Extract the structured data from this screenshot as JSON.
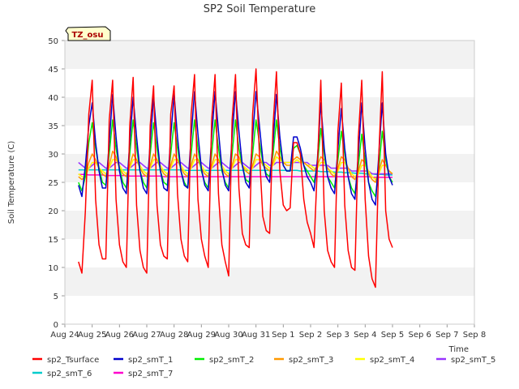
{
  "chart_data": {
    "type": "line",
    "title": "SP2 Soil Temperature",
    "xlabel": "Time",
    "ylabel": "Soil Temperature (C)",
    "ylim": [
      0,
      50
    ],
    "yticks": [
      0,
      5,
      10,
      15,
      20,
      25,
      30,
      35,
      40,
      45,
      50
    ],
    "xlim": [
      0,
      15
    ],
    "xtick_labels": [
      "Aug 24",
      "Aug 25",
      "Aug 26",
      "Aug 27",
      "Aug 28",
      "Aug 29",
      "Aug 30",
      "Aug 31",
      "Sep 1",
      "Sep 2",
      "Sep 3",
      "Sep 4",
      "Sep 5",
      "Sep 6",
      "Sep 7",
      "Sep 8"
    ],
    "grid": "horizontal bands",
    "legend_position": "bottom",
    "annotation": "TZ_osu",
    "sample_step_days": 0.125,
    "series": [
      {
        "name": "sp2_Tsurface",
        "color": "#ff0000",
        "values": [
          11.0,
          9.0,
          20.0,
          37.0,
          43.0,
          22.0,
          14.0,
          11.5,
          11.5,
          36.0,
          43.0,
          22.0,
          14.0,
          11.0,
          10.0,
          35.0,
          43.5,
          21.0,
          13.0,
          10.0,
          9.0,
          35.0,
          42.0,
          21.0,
          14.0,
          12.0,
          11.5,
          37.0,
          42.0,
          23.0,
          15.0,
          12.0,
          11.0,
          37.0,
          44.0,
          22.0,
          15.0,
          12.0,
          10.0,
          36.0,
          44.0,
          23.0,
          14.0,
          11.0,
          8.5,
          36.0,
          44.0,
          24.0,
          16.0,
          14.0,
          13.5,
          37.0,
          45.0,
          30.0,
          19.0,
          16.5,
          16.0,
          35.0,
          44.5,
          27.0,
          21.0,
          20.0,
          20.5,
          32.0,
          32.0,
          30.0,
          22.0,
          18.0,
          16.0,
          13.5,
          28.0,
          43.0,
          20.0,
          13.0,
          11.0,
          10.0,
          34.0,
          42.5,
          21.0,
          13.0,
          10.0,
          9.5,
          33.0,
          43.0,
          22.0,
          12.0,
          8.0,
          6.5,
          30.0,
          44.5,
          20.0,
          15.0,
          13.5
        ]
      },
      {
        "name": "sp2_smT_1",
        "color": "#0000cc",
        "values": [
          24.5,
          22.5,
          28.0,
          35.0,
          39.0,
          32.0,
          27.0,
          24.0,
          24.0,
          32.0,
          40.5,
          33.0,
          27.0,
          24.0,
          23.0,
          32.0,
          40.0,
          33.0,
          27.0,
          24.0,
          23.0,
          32.0,
          40.0,
          33.0,
          27.0,
          24.0,
          23.5,
          33.0,
          40.5,
          33.0,
          27.0,
          24.5,
          24.0,
          33.0,
          41.0,
          33.5,
          27.5,
          24.5,
          23.5,
          33.0,
          41.0,
          34.0,
          27.5,
          24.5,
          23.5,
          33.0,
          41.0,
          34.0,
          28.0,
          25.0,
          24.0,
          33.0,
          41.0,
          35.0,
          29.0,
          26.0,
          25.0,
          32.0,
          40.5,
          33.0,
          28.0,
          27.0,
          27.0,
          33.0,
          33.0,
          31.0,
          28.0,
          26.0,
          25.0,
          23.5,
          29.0,
          39.0,
          31.0,
          26.0,
          24.0,
          23.0,
          31.0,
          38.0,
          31.0,
          26.0,
          23.0,
          22.0,
          30.0,
          39.0,
          31.0,
          25.0,
          22.0,
          21.0,
          30.0,
          39.0,
          30.0,
          26.0,
          24.5
        ]
      },
      {
        "name": "sp2_smT_2",
        "color": "#00ee00",
        "values": [
          25.0,
          23.5,
          26.0,
          32.0,
          35.5,
          31.0,
          27.5,
          25.0,
          24.5,
          30.0,
          36.0,
          31.0,
          27.5,
          25.0,
          24.0,
          30.0,
          36.0,
          31.0,
          27.0,
          25.0,
          24.0,
          30.0,
          35.5,
          31.0,
          27.0,
          25.0,
          24.5,
          30.0,
          35.5,
          31.0,
          27.0,
          25.0,
          24.0,
          30.0,
          36.0,
          31.0,
          27.0,
          25.0,
          24.0,
          30.0,
          36.0,
          31.0,
          27.0,
          25.0,
          24.0,
          30.0,
          36.0,
          31.0,
          28.0,
          25.5,
          25.0,
          30.0,
          36.0,
          32.0,
          28.5,
          26.5,
          26.0,
          30.0,
          36.0,
          31.0,
          28.0,
          27.0,
          27.0,
          31.0,
          31.5,
          30.0,
          28.0,
          27.0,
          26.0,
          25.0,
          28.0,
          34.5,
          30.0,
          26.0,
          25.0,
          24.0,
          29.0,
          34.0,
          30.0,
          26.0,
          24.0,
          23.0,
          28.0,
          33.5,
          29.0,
          25.0,
          23.5,
          22.5,
          27.5,
          34.0,
          29.0,
          26.0,
          25.0
        ]
      },
      {
        "name": "sp2_smT_3",
        "color": "#ff9900",
        "values": [
          26.0,
          25.5,
          26.0,
          28.5,
          30.0,
          29.0,
          27.5,
          26.5,
          26.0,
          28.0,
          30.5,
          29.5,
          27.5,
          26.5,
          26.0,
          28.0,
          30.0,
          29.0,
          27.5,
          26.5,
          26.0,
          28.0,
          30.0,
          29.0,
          27.5,
          26.5,
          26.0,
          28.0,
          30.0,
          29.0,
          27.5,
          26.5,
          26.0,
          28.0,
          30.0,
          29.0,
          27.5,
          26.5,
          26.0,
          28.0,
          30.0,
          29.0,
          27.5,
          26.5,
          26.0,
          28.0,
          30.0,
          29.5,
          28.0,
          27.0,
          26.5,
          28.0,
          30.0,
          29.5,
          28.0,
          27.5,
          27.0,
          28.5,
          30.5,
          29.5,
          28.5,
          28.0,
          28.0,
          29.0,
          29.5,
          29.0,
          28.5,
          28.0,
          27.5,
          27.0,
          28.0,
          29.5,
          29.0,
          27.5,
          26.5,
          26.0,
          27.5,
          29.5,
          29.0,
          27.5,
          26.0,
          25.5,
          27.0,
          29.0,
          28.5,
          26.5,
          25.5,
          25.0,
          27.0,
          29.0,
          28.0,
          27.0,
          26.5
        ]
      },
      {
        "name": "sp2_smT_4",
        "color": "#ffff00",
        "values": [
          26.5,
          26.0,
          26.0,
          27.5,
          28.5,
          28.5,
          27.5,
          27.0,
          26.5,
          27.5,
          29.0,
          29.0,
          28.0,
          27.0,
          26.5,
          27.5,
          29.0,
          29.0,
          28.0,
          27.0,
          26.5,
          27.5,
          29.0,
          29.0,
          28.0,
          27.0,
          26.5,
          27.5,
          29.0,
          29.0,
          28.0,
          27.0,
          26.5,
          27.5,
          29.0,
          29.0,
          28.0,
          27.0,
          26.5,
          27.5,
          29.0,
          29.0,
          28.0,
          27.0,
          26.5,
          27.5,
          29.0,
          29.0,
          28.0,
          27.5,
          27.0,
          27.5,
          29.0,
          29.0,
          28.5,
          28.0,
          27.5,
          28.0,
          29.5,
          29.0,
          28.5,
          28.5,
          28.5,
          28.5,
          29.0,
          28.5,
          28.5,
          28.0,
          28.0,
          27.5,
          27.5,
          28.5,
          28.5,
          27.5,
          27.0,
          26.5,
          27.0,
          28.5,
          28.5,
          27.5,
          26.5,
          26.0,
          26.5,
          28.0,
          28.0,
          27.0,
          26.0,
          25.5,
          26.5,
          28.0,
          28.0,
          27.0,
          26.5
        ]
      },
      {
        "name": "sp2_smT_5",
        "color": "#9933ff",
        "values": [
          28.5,
          28.0,
          27.5,
          27.5,
          28.0,
          28.5,
          28.5,
          28.0,
          27.5,
          27.5,
          28.0,
          28.5,
          28.5,
          28.0,
          27.5,
          27.5,
          28.0,
          28.5,
          28.5,
          28.0,
          27.5,
          27.5,
          28.0,
          28.5,
          28.5,
          28.0,
          27.5,
          27.5,
          28.0,
          28.5,
          28.5,
          28.0,
          27.5,
          27.5,
          28.0,
          28.5,
          28.5,
          28.0,
          27.5,
          27.5,
          28.0,
          28.5,
          28.5,
          28.0,
          27.5,
          27.5,
          28.0,
          28.5,
          28.5,
          28.0,
          27.5,
          27.5,
          28.0,
          28.5,
          28.5,
          28.5,
          28.0,
          28.0,
          28.5,
          28.5,
          28.5,
          28.5,
          28.5,
          28.5,
          28.5,
          28.5,
          28.5,
          28.5,
          28.0,
          28.0,
          28.0,
          28.0,
          28.0,
          28.0,
          27.5,
          27.5,
          27.5,
          27.5,
          27.5,
          27.5,
          27.0,
          27.0,
          27.0,
          27.0,
          27.0,
          27.0,
          26.5,
          26.5,
          26.5,
          26.5,
          26.5,
          26.5,
          26.5
        ]
      },
      {
        "name": "sp2_smT_6",
        "color": "#00cccc",
        "values": [
          27.2,
          27.2,
          27.2,
          27.2,
          27.2,
          27.2,
          27.2,
          27.2,
          27.2,
          27.2,
          27.2,
          27.2,
          27.2,
          27.2,
          27.2,
          27.2,
          27.2,
          27.2,
          27.2,
          27.2,
          27.2,
          27.2,
          27.2,
          27.2,
          27.2,
          27.2,
          27.2,
          27.2,
          27.2,
          27.2,
          27.2,
          27.1,
          27.1,
          27.1,
          27.1,
          27.1,
          27.1,
          27.1,
          27.1,
          27.1,
          27.1,
          27.1,
          27.1,
          27.1,
          27.1,
          27.1,
          27.1,
          27.1,
          27.1,
          27.1,
          27.1,
          27.1,
          27.1,
          27.1,
          27.1,
          27.1,
          27.1,
          27.1,
          27.1,
          27.1,
          27.1,
          27.1,
          27.1,
          27.1,
          27.1,
          27.0,
          27.0,
          27.0,
          27.0,
          27.0,
          27.0,
          26.9,
          26.9,
          26.9,
          26.9,
          26.8,
          26.8,
          26.8,
          26.7,
          26.7,
          26.7,
          26.6,
          26.6,
          26.6,
          26.5,
          26.5,
          26.5,
          26.4,
          26.4,
          26.4,
          26.3,
          26.3,
          26.3
        ]
      },
      {
        "name": "sp2_smT_7",
        "color": "#ff00cc",
        "values": [
          26.4,
          26.4,
          26.4,
          26.3,
          26.3,
          26.3,
          26.3,
          26.3,
          26.2,
          26.2,
          26.2,
          26.2,
          26.2,
          26.2,
          26.2,
          26.1,
          26.1,
          26.1,
          26.1,
          26.1,
          26.1,
          26.1,
          26.1,
          26.1,
          26.1,
          26.0,
          26.0,
          26.0,
          26.0,
          26.0,
          26.0,
          26.0,
          26.0,
          26.0,
          26.0,
          26.0,
          26.0,
          26.0,
          26.0,
          26.0,
          26.0,
          26.0,
          26.0,
          26.0,
          26.0,
          26.0,
          26.0,
          26.0,
          26.0,
          26.0,
          26.0,
          26.0,
          26.0,
          26.0,
          26.0,
          26.0,
          26.0,
          26.0,
          26.0,
          26.0,
          26.0,
          26.0,
          26.0,
          26.0,
          26.0,
          26.0,
          26.0,
          26.0,
          26.0,
          26.0,
          26.0,
          26.0,
          26.0,
          26.0,
          26.0,
          26.0,
          26.0,
          26.0,
          26.0,
          26.0,
          26.0,
          26.0,
          26.0,
          26.0,
          26.0,
          26.0,
          25.9,
          25.9,
          25.9,
          25.9,
          25.9,
          25.9,
          25.9
        ]
      }
    ]
  }
}
